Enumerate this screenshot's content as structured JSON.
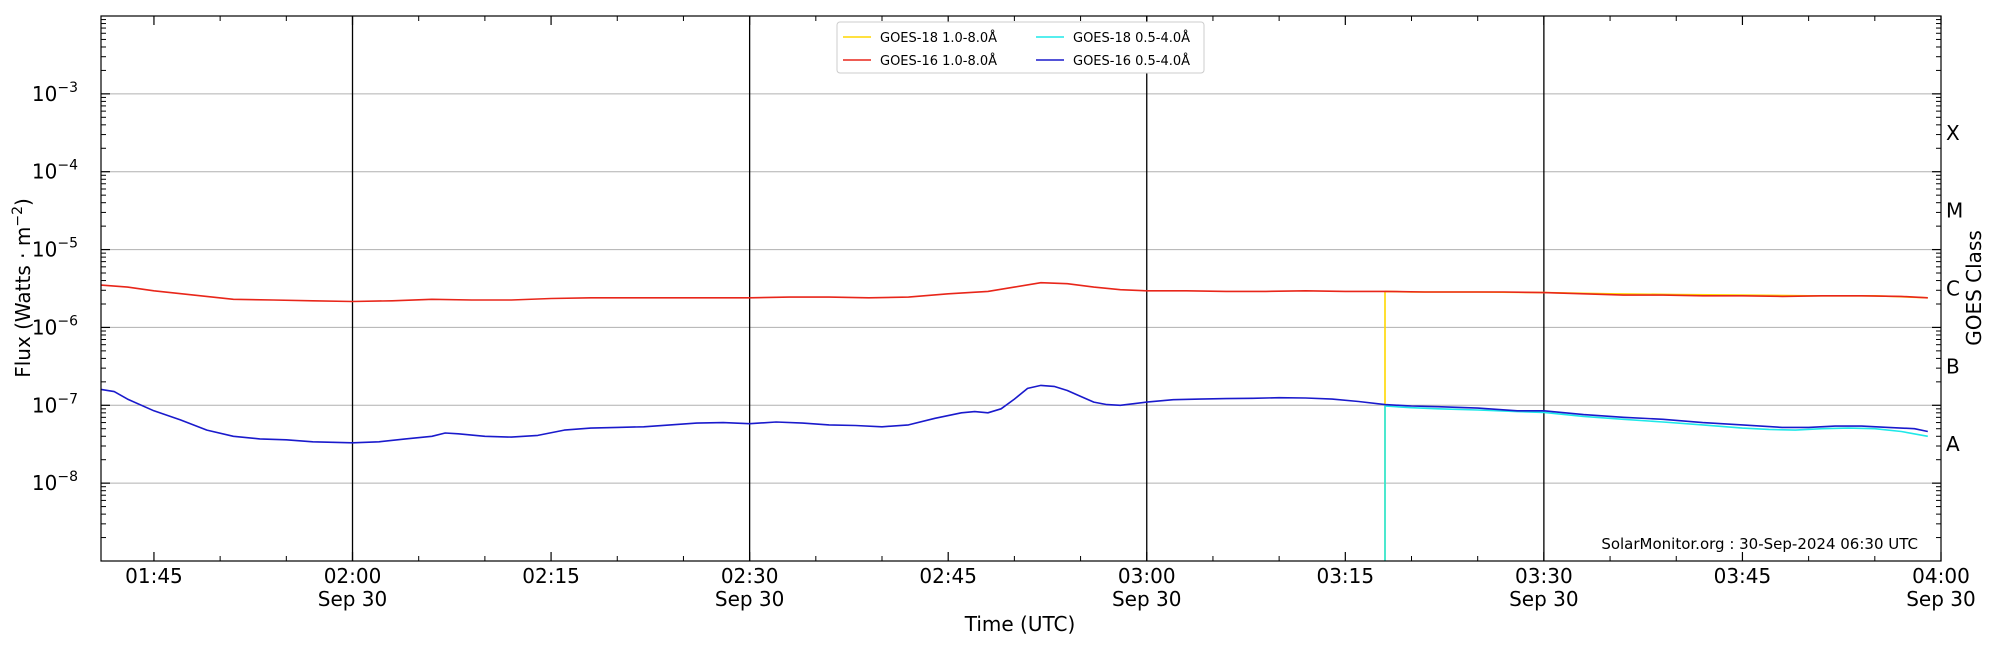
{
  "chart_data": {
    "type": "line",
    "title": "",
    "xlabel": "Time (UTC)",
    "ylabel": "Flux (Watts · m",
    "ylabel_sup": "−2",
    "ylabel_close": ")",
    "right_label": "GOES Class",
    "xlim": [
      "01:41",
      "04:00"
    ],
    "yscale": "log",
    "ylim": [
      1e-09,
      0.01
    ],
    "grid": true,
    "legend": "upper-center",
    "credit": "SolarMonitor.org : 30-Sep-2024 06:30 UTC",
    "x_ticks": [
      {
        "t": "01:45",
        "label": "01:45",
        "date": ""
      },
      {
        "t": "02:00",
        "label": "02:00",
        "date": "Sep 30"
      },
      {
        "t": "02:15",
        "label": "02:15",
        "date": ""
      },
      {
        "t": "02:30",
        "label": "02:30",
        "date": "Sep 30"
      },
      {
        "t": "02:45",
        "label": "02:45",
        "date": ""
      },
      {
        "t": "03:00",
        "label": "03:00",
        "date": "Sep 30"
      },
      {
        "t": "03:15",
        "label": "03:15",
        "date": ""
      },
      {
        "t": "03:30",
        "label": "03:30",
        "date": "Sep 30"
      },
      {
        "t": "03:45",
        "label": "03:45",
        "date": ""
      },
      {
        "t": "04:00",
        "label": "04:00",
        "date": "Sep 30"
      }
    ],
    "vlines": [
      "02:00",
      "02:30",
      "03:00",
      "03:30"
    ],
    "y_ticks": [
      {
        "v": 1e-08,
        "label": "10",
        "exp": "−8"
      },
      {
        "v": 1e-07,
        "label": "10",
        "exp": "−7"
      },
      {
        "v": 1e-06,
        "label": "10",
        "exp": "−6"
      },
      {
        "v": 1e-05,
        "label": "10",
        "exp": "−5"
      },
      {
        "v": 0.0001,
        "label": "10",
        "exp": "−4"
      },
      {
        "v": 0.001,
        "label": "10",
        "exp": "−3"
      }
    ],
    "goes_classes": [
      {
        "label": "A",
        "v": 3.16e-08
      },
      {
        "label": "B",
        "v": 3.16e-07
      },
      {
        "label": "C",
        "v": 3.16e-06
      },
      {
        "label": "M",
        "v": 3.16e-05
      },
      {
        "label": "X",
        "v": 0.000316
      }
    ],
    "series": [
      {
        "name": "GOES-18 1.0-8.0Å",
        "color": "#ffd700",
        "x": [
          "03:18",
          "03:18",
          "03:18",
          "03:20",
          "03:25",
          "03:30",
          "03:35",
          "03:40",
          "03:45",
          "03:50",
          "03:55",
          "03:59"
        ],
        "values": [
          1e-09,
          1e-09,
          2.9e-06,
          2.85e-06,
          2.85e-06,
          2.8e-06,
          2.7e-06,
          2.65e-06,
          2.6e-06,
          2.55e-06,
          2.55e-06,
          2.4e-06
        ]
      },
      {
        "name": "GOES-16 1.0-8.0Å",
        "color": "#e8261a",
        "x": [
          "01:41",
          "01:43",
          "01:45",
          "01:48",
          "01:51",
          "01:54",
          "01:57",
          "02:00",
          "02:03",
          "02:06",
          "02:09",
          "02:12",
          "02:15",
          "02:18",
          "02:21",
          "02:24",
          "02:27",
          "02:30",
          "02:33",
          "02:36",
          "02:39",
          "02:42",
          "02:45",
          "02:48",
          "02:50",
          "02:52",
          "02:54",
          "02:56",
          "02:58",
          "03:00",
          "03:03",
          "03:06",
          "03:09",
          "03:12",
          "03:15",
          "03:18",
          "03:21",
          "03:24",
          "03:27",
          "03:30",
          "03:33",
          "03:36",
          "03:39",
          "03:42",
          "03:45",
          "03:48",
          "03:51",
          "03:54",
          "03:57",
          "03:59"
        ],
        "values": [
          3.5e-06,
          3.3e-06,
          2.95e-06,
          2.6e-06,
          2.3e-06,
          2.25e-06,
          2.2e-06,
          2.15e-06,
          2.2e-06,
          2.3e-06,
          2.25e-06,
          2.25e-06,
          2.35e-06,
          2.4e-06,
          2.4e-06,
          2.4e-06,
          2.4e-06,
          2.4e-06,
          2.45e-06,
          2.45e-06,
          2.4e-06,
          2.45e-06,
          2.7e-06,
          2.9e-06,
          3.3e-06,
          3.75e-06,
          3.65e-06,
          3.3e-06,
          3.05e-06,
          2.95e-06,
          2.95e-06,
          2.9e-06,
          2.9e-06,
          2.95e-06,
          2.9e-06,
          2.9e-06,
          2.85e-06,
          2.85e-06,
          2.85e-06,
          2.8e-06,
          2.7e-06,
          2.6e-06,
          2.6e-06,
          2.55e-06,
          2.55e-06,
          2.5e-06,
          2.55e-06,
          2.55e-06,
          2.5e-06,
          2.4e-06
        ]
      },
      {
        "name": "GOES-18 0.5-4.0Å",
        "color": "#1fe8e8",
        "x": [
          "03:18",
          "03:18",
          "03:20",
          "03:22",
          "03:25",
          "03:28",
          "03:30",
          "03:33",
          "03:36",
          "03:39",
          "03:42",
          "03:45",
          "03:47",
          "03:49",
          "03:51",
          "03:53",
          "03:55",
          "03:57",
          "03:59"
        ],
        "values": [
          1e-09,
          9.8e-08,
          9.3e-08,
          9e-08,
          8.7e-08,
          8.3e-08,
          8.1e-08,
          7.2e-08,
          6.6e-08,
          6.1e-08,
          5.6e-08,
          5.1e-08,
          4.9e-08,
          4.8e-08,
          5e-08,
          5.1e-08,
          5e-08,
          4.6e-08,
          4e-08
        ]
      },
      {
        "name": "GOES-16 0.5-4.0Å",
        "color": "#1a1acc",
        "x": [
          "01:41",
          "01:42",
          "01:43",
          "01:45",
          "01:47",
          "01:49",
          "01:51",
          "01:53",
          "01:55",
          "01:57",
          "02:00",
          "02:02",
          "02:04",
          "02:06",
          "02:07",
          "02:08",
          "02:10",
          "02:12",
          "02:14",
          "02:16",
          "02:18",
          "02:20",
          "02:22",
          "02:24",
          "02:26",
          "02:28",
          "02:30",
          "02:32",
          "02:34",
          "02:36",
          "02:38",
          "02:40",
          "02:42",
          "02:44",
          "02:46",
          "02:47",
          "02:48",
          "02:49",
          "02:50",
          "02:51",
          "02:52",
          "02:53",
          "02:54",
          "02:55",
          "02:56",
          "02:57",
          "02:58",
          "03:00",
          "03:02",
          "03:04",
          "03:06",
          "03:08",
          "03:10",
          "03:12",
          "03:14",
          "03:16",
          "03:18",
          "03:20",
          "03:22",
          "03:25",
          "03:28",
          "03:30",
          "03:33",
          "03:36",
          "03:39",
          "03:42",
          "03:45",
          "03:48",
          "03:50",
          "03:52",
          "03:54",
          "03:56",
          "03:58",
          "03:59"
        ],
        "values": [
          1.6e-07,
          1.5e-07,
          1.2e-07,
          8.5e-08,
          6.5e-08,
          4.8e-08,
          4e-08,
          3.7e-08,
          3.6e-08,
          3.4e-08,
          3.3e-08,
          3.4e-08,
          3.7e-08,
          4e-08,
          4.4e-08,
          4.3e-08,
          4e-08,
          3.9e-08,
          4.1e-08,
          4.8e-08,
          5.1e-08,
          5.2e-08,
          5.3e-08,
          5.6e-08,
          5.9e-08,
          6e-08,
          5.8e-08,
          6.1e-08,
          5.9e-08,
          5.6e-08,
          5.5e-08,
          5.3e-08,
          5.6e-08,
          6.8e-08,
          8e-08,
          8.3e-08,
          8e-08,
          9e-08,
          1.2e-07,
          1.65e-07,
          1.8e-07,
          1.75e-07,
          1.55e-07,
          1.3e-07,
          1.1e-07,
          1.02e-07,
          1e-07,
          1.1e-07,
          1.18e-07,
          1.2e-07,
          1.22e-07,
          1.23e-07,
          1.25e-07,
          1.24e-07,
          1.2e-07,
          1.12e-07,
          1.02e-07,
          9.8e-08,
          9.6e-08,
          9.2e-08,
          8.5e-08,
          8.5e-08,
          7.6e-08,
          7e-08,
          6.6e-08,
          6e-08,
          5.6e-08,
          5.2e-08,
          5.2e-08,
          5.4e-08,
          5.4e-08,
          5.2e-08,
          5e-08,
          4.6e-08
        ]
      }
    ]
  }
}
